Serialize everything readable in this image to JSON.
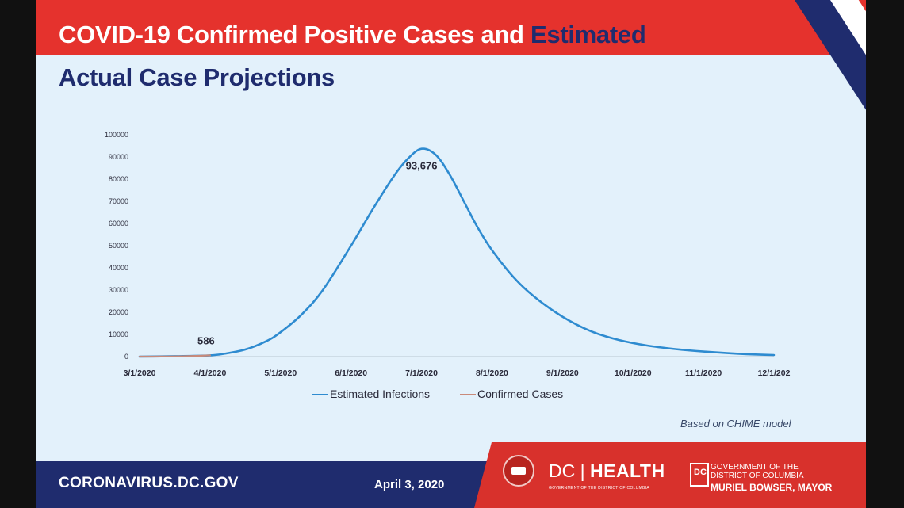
{
  "header": {
    "title_line1": "COVID-19 Confirmed Positive Cases and",
    "title_line1_accent": "Estimated",
    "title_line2": "Actual Case Projections"
  },
  "chart_data": {
    "type": "line",
    "title": "COVID-19 Confirmed Positive Cases and Estimated Actual Case Projections",
    "xlabel": "",
    "ylabel": "",
    "x_ticks": [
      "3/1/2020",
      "4/1/2020",
      "5/1/2020",
      "6/1/2020",
      "7/1/2020",
      "8/1/2020",
      "9/1/2020",
      "10/1/2020",
      "11/1/2020",
      "12/1/202"
    ],
    "y_ticks": [
      "0",
      "10000",
      "20000",
      "30000",
      "40000",
      "50000",
      "60000",
      "70000",
      "80000",
      "90000",
      "100000"
    ],
    "ylim": [
      0,
      100000
    ],
    "grid": false,
    "legend_position": "bottom",
    "series": [
      {
        "name": "Estimated Infections",
        "color": "#2e8bd0",
        "x": [
          0,
          0.5,
          1,
          1.2,
          1.5,
          1.8,
          2,
          2.3,
          2.6,
          3,
          3.3,
          3.6,
          3.8,
          4,
          4.2,
          4.4,
          4.6,
          4.8,
          5,
          5.3,
          5.6,
          6,
          6.4,
          6.8,
          7.2,
          7.6,
          8,
          8.5,
          9
        ],
        "y": [
          0,
          200,
          586,
          1300,
          3200,
          7000,
          11000,
          19000,
          30000,
          50000,
          66000,
          81000,
          89000,
          93676,
          91000,
          82000,
          70000,
          58000,
          48000,
          36000,
          27000,
          18000,
          11500,
          7500,
          5000,
          3400,
          2300,
          1300,
          700
        ]
      },
      {
        "name": "Confirmed Cases",
        "color": "#c98a7a",
        "x": [
          0,
          0.3,
          0.6,
          0.8,
          1
        ],
        "y": [
          0,
          30,
          150,
          330,
          586
        ]
      }
    ],
    "annotations": [
      {
        "text": "93,676",
        "x": 4,
        "y": 93676
      },
      {
        "text": "586",
        "x": 1,
        "y": 586
      }
    ]
  },
  "note": "Based on CHIME model",
  "footer": {
    "url": "CORONAVIRUS.DC.GOV",
    "date": "April 3, 2020",
    "dc_prefix": "DC",
    "dc_health": "HEALTH",
    "dc_sub": "GOVERNMENT OF THE DISTRICT OF COLUMBIA",
    "gov_logo": "DC",
    "gov_line1": "GOVERNMENT OF THE",
    "gov_line2": "DISTRICT OF COLUMBIA",
    "gov_line3": "MURIEL BOWSER, MAYOR"
  },
  "colors": {
    "brand_red": "#e5322d",
    "brand_navy": "#1f2c6e",
    "background": "#e3f1fb"
  }
}
